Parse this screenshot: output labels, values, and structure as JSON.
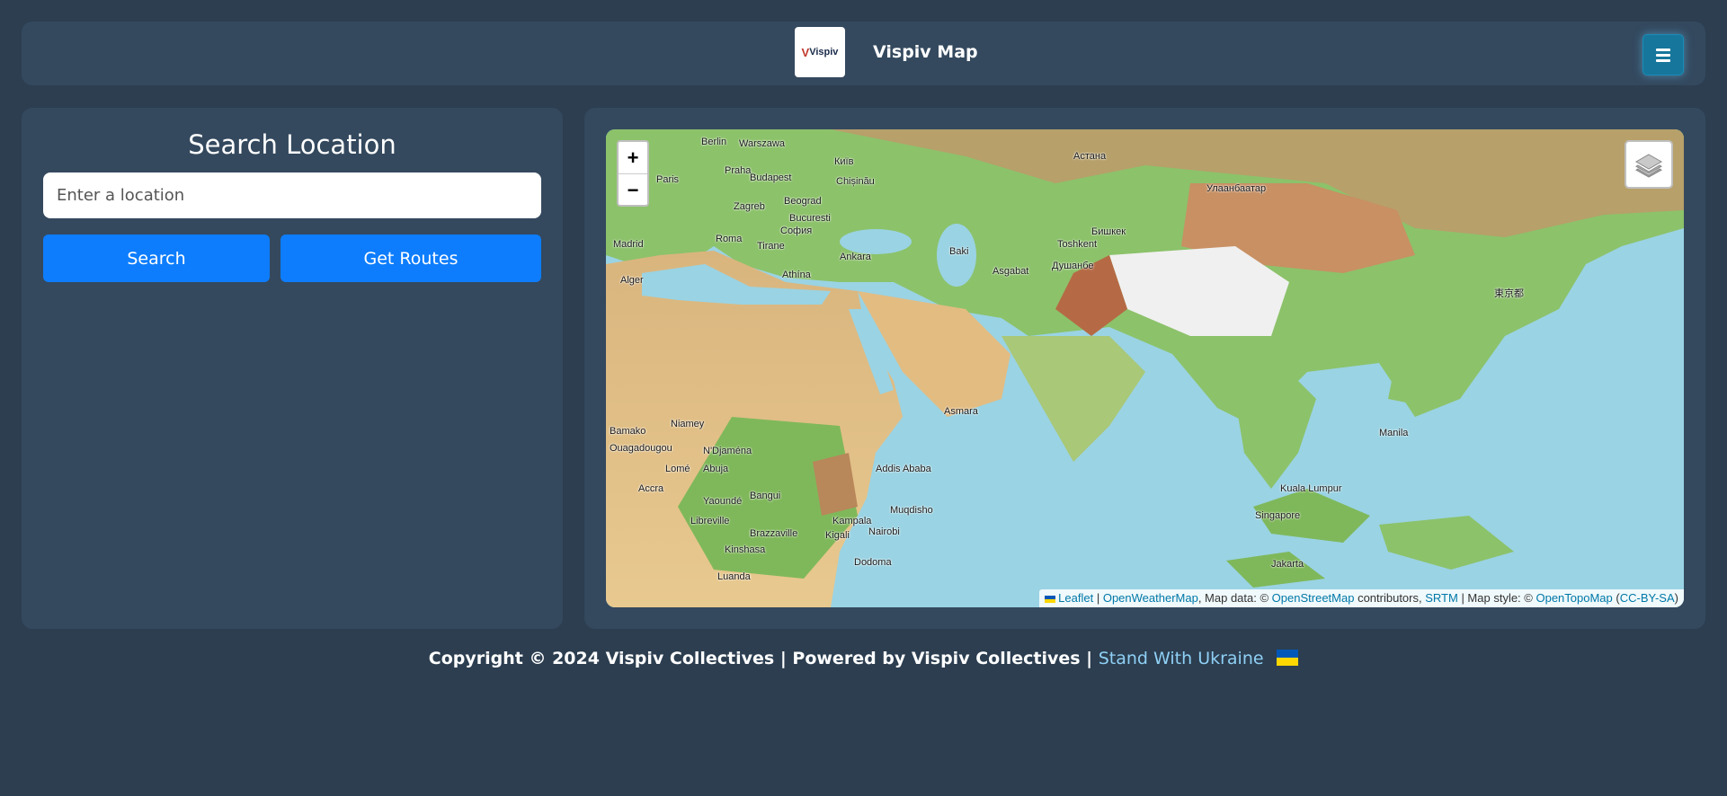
{
  "header": {
    "logo_text": "Vispiv",
    "title": "Vispiv Map",
    "menu_icon": "hamburger-icon"
  },
  "sidebar": {
    "heading": "Search Location",
    "search_placeholder": "Enter a location",
    "search_value": "",
    "search_button": "Search",
    "routes_button": "Get Routes"
  },
  "map": {
    "zoom_in": "+",
    "zoom_out": "−",
    "layers_icon": "layers-icon",
    "places": [
      "Berlin",
      "Warszawa",
      "Praha",
      "Київ",
      "Budapest",
      "Chișinău",
      "Paris",
      "Beograd",
      "Zagreb",
      "Bucuresti",
      "Roma",
      "София",
      "Madrid",
      "Tirane",
      "Ankara",
      "Baki",
      "Астана",
      "Toshkent",
      "Бишкек",
      "Душанбе",
      "Asgabat",
      "Улаанбаатар",
      "東京都",
      "Alger",
      "Athína",
      "Asmara",
      "Niamey",
      "Bamako",
      "Ouagadougou",
      "N'Djaména",
      "Abuja",
      "Lomé",
      "Accra",
      "Yaoundé",
      "Bangui",
      "Libreville",
      "Brazzaville",
      "Kinshasa",
      "Luanda",
      "Kampala",
      "Kigali",
      "Nairobi",
      "Dodoma",
      "Muqdisho",
      "Addis Ababa",
      "Manila",
      "Kuala Lumpur",
      "Singapore",
      "Jakarta"
    ],
    "attribution": {
      "leaflet": "Leaflet",
      "owm": "OpenWeatherMap",
      "map_data": ", Map data: © ",
      "osm": "OpenStreetMap",
      "contributors": " contributors, ",
      "srtm": "SRTM",
      "map_style": " | Map style: © ",
      "opentopo": "OpenTopoMap",
      "license": "CC-BY-SA"
    }
  },
  "footer": {
    "copyright": "Copyright © 2024 Vispiv Collectives | Powered by Vispiv Collectives | ",
    "ukraine_link": "Stand With Ukraine"
  },
  "colors": {
    "background": "#2c3e50",
    "panel": "#34495e",
    "button_blue": "#0d7dfd",
    "menu_button": "#17769b",
    "link": "#8fd0f5",
    "ukraine_blue": "#0057b7",
    "ukraine_yellow": "#ffd700"
  }
}
